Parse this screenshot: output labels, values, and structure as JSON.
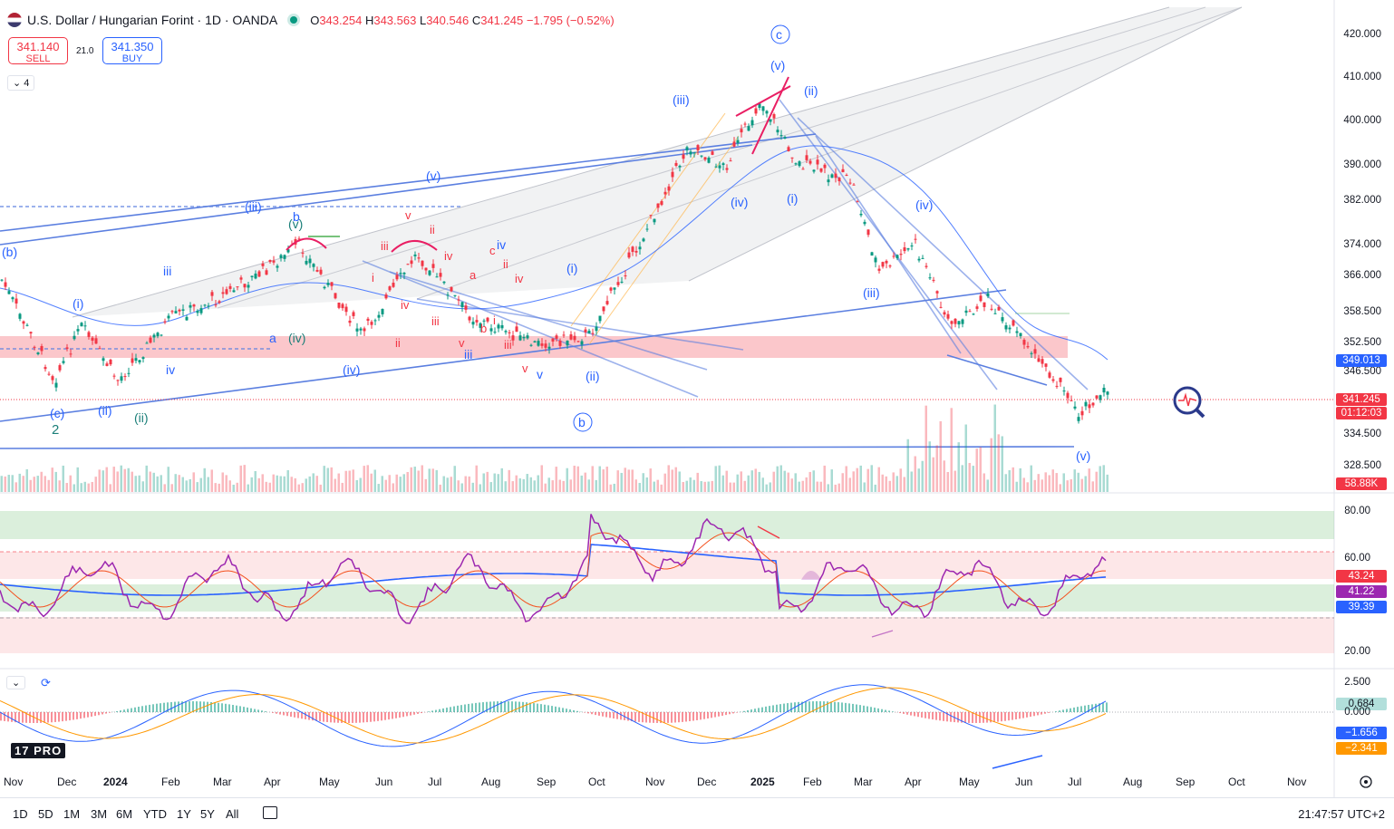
{
  "header": {
    "title": "U.S. Dollar / Hungarian Forint · 1D · OANDA",
    "open_label": "O",
    "open": "343.254",
    "high_label": "H",
    "high": "343.563",
    "low_label": "L",
    "low": "340.546",
    "close_label": "C",
    "close": "341.245",
    "change": "−1.795 (−0.52%)"
  },
  "trade": {
    "sell_price": "341.140",
    "sell_label": "SELL",
    "spread": "21.0",
    "buy_price": "341.350",
    "buy_label": "BUY"
  },
  "indicators_toggle": "4",
  "price_axis": [
    "420.000",
    "410.000",
    "400.000",
    "390.000",
    "382.000",
    "374.000",
    "366.000",
    "358.500",
    "352.500",
    "346.500",
    "334.500",
    "328.500"
  ],
  "badges": {
    "ma_value": "349.013",
    "last_price": "341.245",
    "countdown": "01:12:03",
    "volume": "58.88K",
    "rsi_a": "43.24",
    "rsi_b": "41.22",
    "rsi_c": "39.39",
    "macd_hist": "0.684",
    "macd_line": "−1.656",
    "macd_signal": "−2.341"
  },
  "rsi_axis": [
    "80.00",
    "60.00",
    "20.00"
  ],
  "macd_axis": [
    "2.500",
    "0.000"
  ],
  "time_axis": [
    "Nov",
    "Dec",
    "2024",
    "Feb",
    "Mar",
    "Apr",
    "May",
    "Jun",
    "Jul",
    "Aug",
    "Sep",
    "Oct",
    "Nov",
    "Dec",
    "2025",
    "Feb",
    "Mar",
    "Apr",
    "May",
    "Jun",
    "Jul",
    "Aug",
    "Sep",
    "Oct",
    "Nov"
  ],
  "timeframes": [
    "1D",
    "5D",
    "1M",
    "3M",
    "6M",
    "YTD",
    "1Y",
    "5Y",
    "All"
  ],
  "clock": "21:47:57 UTC+2",
  "logo_text": "PRO",
  "wave_labels": [
    "(b)",
    "(c)",
    "2",
    "(i)",
    "(ii)",
    "(iii)",
    "(iv)",
    "(v)",
    "(i)",
    "(ii)",
    "(iii)",
    "(iv)",
    "(v)",
    "c",
    "b",
    "(i)",
    "(ii)",
    "(iii)",
    "(iv)",
    "(v)",
    "a",
    "b",
    "c",
    "i",
    "ii",
    "iii",
    "iv",
    "v"
  ],
  "colors": {
    "up": "#089981",
    "down": "#f23645",
    "accent": "#2962ff",
    "wave": "#2962ff",
    "rsi": "#9c27b0"
  }
}
